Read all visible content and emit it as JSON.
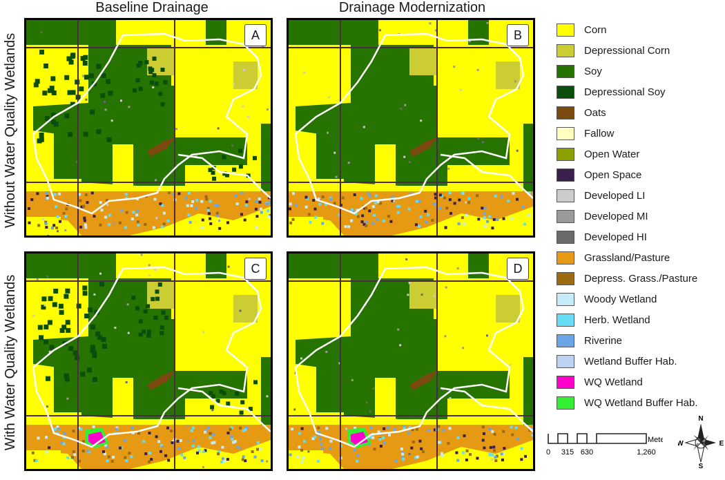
{
  "columns": [
    "Baseline Drainage",
    "Drainage Modernization"
  ],
  "rows": [
    "Without Water Quality Wetlands",
    "With Water Quality Wetlands"
  ],
  "panels": [
    "A",
    "B",
    "C",
    "D"
  ],
  "legend": [
    {
      "label": "Corn",
      "color": "#ffff00"
    },
    {
      "label": "Depressional Corn",
      "color": "#cccc33"
    },
    {
      "label": "Soy",
      "color": "#267300"
    },
    {
      "label": "Depressional Soy",
      "color": "#0b4d0b"
    },
    {
      "label": "Oats",
      "color": "#7a4a10"
    },
    {
      "label": "Fallow",
      "color": "#ffffc0"
    },
    {
      "label": "Open Water",
      "color": "#8ca000"
    },
    {
      "label": "Open Space",
      "color": "#3a1f4d"
    },
    {
      "label": "Developed LI",
      "color": "#cccccc"
    },
    {
      "label": "Developed MI",
      "color": "#9a9a9a"
    },
    {
      "label": "Developed HI",
      "color": "#6a6a6a"
    },
    {
      "label": "Grassland/Pasture",
      "color": "#e69a14"
    },
    {
      "label": "Depress. Grass./Pasture",
      "color": "#9c6a10"
    },
    {
      "label": "Woody Wetland",
      "color": "#c6ecfa"
    },
    {
      "label": "Herb. Wetland",
      "color": "#66dcf5"
    },
    {
      "label": "Riverine",
      "color": "#6aa6e6"
    },
    {
      "label": "Wetland Buffer Hab.",
      "color": "#bdd2f2"
    },
    {
      "label": "WQ Wetland",
      "color": "#ff00cc"
    },
    {
      "label": "WQ Wetland Buffer Hab.",
      "color": "#33ee33"
    }
  ],
  "scale": {
    "ticks": [
      "0",
      "315",
      "630",
      "1,260"
    ],
    "unit": "Meters"
  },
  "compass": {
    "n": "N",
    "s": "S",
    "e": "E",
    "w": "W"
  }
}
